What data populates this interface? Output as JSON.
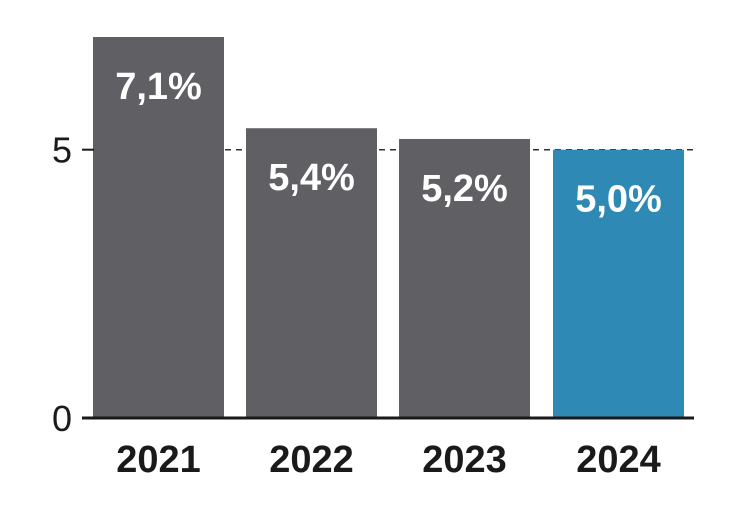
{
  "chart_data": {
    "type": "bar",
    "categories": [
      "2021",
      "2022",
      "2023",
      "2024"
    ],
    "values": [
      7.1,
      5.4,
      5.2,
      5.0
    ],
    "data_labels": [
      "7,1%",
      "5,4%",
      "5,2%",
      "5,0%"
    ],
    "yticks": [
      0,
      5
    ],
    "ytick_labels": [
      "0",
      "5"
    ],
    "ylim": [
      0,
      7.1
    ],
    "reference_line": 5,
    "grid": false,
    "colors": {
      "default_bar": "#605f63",
      "highlight_bar": "#2e8ab4",
      "axis": "#1a1a1a",
      "reference_line": "#333333"
    },
    "highlight_index": 3
  }
}
